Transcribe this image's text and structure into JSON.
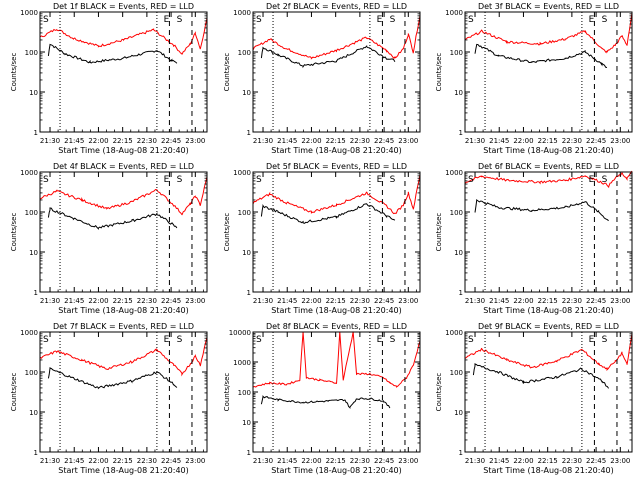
{
  "chart_data": [
    {
      "type": "line",
      "title": "Det 1f BLACK = Events, RED = LLD",
      "xlabel": "Start Time (18-Aug-08 21:20:40)",
      "ylabel": "Counts/sec",
      "x_ticks": [
        "21:30",
        "21:45",
        "22:00",
        "22:15",
        "22:30",
        "22:45",
        "23:00"
      ],
      "y_ticks": [
        "1",
        "10",
        "100",
        "1000"
      ],
      "yscale": "log",
      "ylim": [
        1,
        1000
      ],
      "markers": [
        "E",
        "S"
      ],
      "series": [
        {
          "color": "#000000",
          "points": [
            [
              0.05,
              80
            ],
            [
              0.06,
              160
            ],
            [
              0.15,
              90
            ],
            [
              0.3,
              55
            ],
            [
              0.5,
              70
            ],
            [
              0.7,
              110
            ],
            [
              0.79,
              60
            ],
            [
              0.82,
              55
            ]
          ]
        },
        {
          "color": "#ff0000",
          "points": [
            [
              0,
              230
            ],
            [
              0.1,
              380
            ],
            [
              0.2,
              220
            ],
            [
              0.35,
              140
            ],
            [
              0.5,
              200
            ],
            [
              0.68,
              360
            ],
            [
              0.8,
              150
            ],
            [
              0.85,
              90
            ],
            [
              0.9,
              160
            ],
            [
              0.93,
              300
            ],
            [
              0.96,
              120
            ],
            [
              1,
              700
            ]
          ]
        }
      ]
    },
    {
      "type": "line",
      "title": "Det 2f BLACK = Events, RED = LLD",
      "xlabel": "Start Time (18-Aug-08 21:20:40)",
      "ylabel": "Counts/sec",
      "x_ticks": [
        "21:30",
        "21:45",
        "22:00",
        "22:15",
        "22:30",
        "22:45",
        "23:00"
      ],
      "y_ticks": [
        "1",
        "10",
        "100",
        "1000"
      ],
      "yscale": "log",
      "ylim": [
        1,
        1000
      ],
      "markers": [
        "E",
        "S"
      ],
      "series": [
        {
          "color": "#000000",
          "points": [
            [
              0.05,
              70
            ],
            [
              0.06,
              130
            ],
            [
              0.15,
              85
            ],
            [
              0.3,
              45
            ],
            [
              0.5,
              60
            ],
            [
              0.68,
              140
            ],
            [
              0.8,
              70
            ],
            [
              0.85,
              60
            ]
          ]
        },
        {
          "color": "#ff0000",
          "points": [
            [
              0,
              120
            ],
            [
              0.1,
              210
            ],
            [
              0.2,
              120
            ],
            [
              0.35,
              70
            ],
            [
              0.5,
              110
            ],
            [
              0.68,
              230
            ],
            [
              0.8,
              110
            ],
            [
              0.85,
              70
            ],
            [
              0.9,
              120
            ],
            [
              0.93,
              280
            ],
            [
              0.96,
              100
            ],
            [
              1,
              850
            ]
          ]
        }
      ]
    },
    {
      "type": "line",
      "title": "Det 3f BLACK = Events, RED = LLD",
      "xlabel": "Start Time (18-Aug-08 21:20:40)",
      "ylabel": "Counts/sec",
      "x_ticks": [
        "21:30",
        "21:45",
        "22:00",
        "22:15",
        "22:30",
        "22:45",
        "23:00"
      ],
      "y_ticks": [
        "1",
        "10",
        "100",
        "1000"
      ],
      "yscale": "log",
      "ylim": [
        1,
        1000
      ],
      "markers": [
        "E",
        "S"
      ],
      "series": [
        {
          "color": "#000000",
          "points": [
            [
              0.06,
              90
            ],
            [
              0.07,
              160
            ],
            [
              0.2,
              80
            ],
            [
              0.4,
              55
            ],
            [
              0.6,
              70
            ],
            [
              0.72,
              100
            ],
            [
              0.82,
              50
            ],
            [
              0.85,
              40
            ]
          ]
        },
        {
          "color": "#ff0000",
          "points": [
            [
              0,
              200
            ],
            [
              0.1,
              330
            ],
            [
              0.25,
              180
            ],
            [
              0.45,
              160
            ],
            [
              0.6,
              210
            ],
            [
              0.72,
              330
            ],
            [
              0.82,
              120
            ],
            [
              0.85,
              100
            ],
            [
              0.9,
              150
            ],
            [
              0.94,
              250
            ],
            [
              0.97,
              150
            ],
            [
              1,
              900
            ]
          ]
        }
      ]
    },
    {
      "type": "line",
      "title": "Det 4f BLACK = Events, RED = LLD",
      "xlabel": "Start Time (18-Aug-08 21:20:40)",
      "ylabel": "Counts/sec",
      "x_ticks": [
        "21:30",
        "21:45",
        "22:00",
        "22:15",
        "22:30",
        "22:45",
        "23:00"
      ],
      "y_ticks": [
        "1",
        "10",
        "100",
        "1000"
      ],
      "yscale": "log",
      "ylim": [
        1,
        1000
      ],
      "markers": [
        "E",
        "S"
      ],
      "series": [
        {
          "color": "#000000",
          "points": [
            [
              0.05,
              70
            ],
            [
              0.06,
              120
            ],
            [
              0.2,
              70
            ],
            [
              0.35,
              40
            ],
            [
              0.55,
              60
            ],
            [
              0.7,
              90
            ],
            [
              0.79,
              50
            ],
            [
              0.82,
              40
            ]
          ]
        },
        {
          "color": "#ff0000",
          "points": [
            [
              0,
              220
            ],
            [
              0.1,
              330
            ],
            [
              0.25,
              200
            ],
            [
              0.4,
              120
            ],
            [
              0.55,
              180
            ],
            [
              0.7,
              360
            ],
            [
              0.8,
              150
            ],
            [
              0.85,
              90
            ],
            [
              0.9,
              160
            ],
            [
              0.93,
              250
            ],
            [
              0.96,
              150
            ],
            [
              1,
              750
            ]
          ]
        }
      ]
    },
    {
      "type": "line",
      "title": "Det 5f BLACK = Events, RED = LLD",
      "xlabel": "Start Time (18-Aug-08 21:20:40)",
      "ylabel": "Counts/sec",
      "x_ticks": [
        "21:30",
        "21:45",
        "22:00",
        "22:15",
        "22:30",
        "22:45",
        "23:00"
      ],
      "y_ticks": [
        "1",
        "10",
        "100",
        "1000"
      ],
      "yscale": "log",
      "ylim": [
        1,
        1000
      ],
      "markers": [
        "E",
        "S"
      ],
      "series": [
        {
          "color": "#000000",
          "points": [
            [
              0.05,
              80
            ],
            [
              0.06,
              140
            ],
            [
              0.15,
              100
            ],
            [
              0.3,
              55
            ],
            [
              0.5,
              75
            ],
            [
              0.68,
              160
            ],
            [
              0.8,
              80
            ],
            [
              0.85,
              60
            ]
          ]
        },
        {
          "color": "#ff0000",
          "points": [
            [
              0,
              170
            ],
            [
              0.1,
              280
            ],
            [
              0.2,
              170
            ],
            [
              0.35,
              100
            ],
            [
              0.5,
              150
            ],
            [
              0.68,
              300
            ],
            [
              0.8,
              140
            ],
            [
              0.85,
              90
            ],
            [
              0.9,
              150
            ],
            [
              0.93,
              300
            ],
            [
              0.96,
              120
            ],
            [
              1,
              850
            ]
          ]
        }
      ]
    },
    {
      "type": "line",
      "title": "Det 6f BLACK = Events, RED = LLD",
      "xlabel": "Start Time (18-Aug-08 21:20:40)",
      "ylabel": "Counts/sec",
      "x_ticks": [
        "21:30",
        "21:45",
        "22:00",
        "22:15",
        "22:30",
        "22:45",
        "23:00"
      ],
      "y_ticks": [
        "1",
        "10",
        "100",
        "1000"
      ],
      "yscale": "log",
      "ylim": [
        1,
        1000
      ],
      "markers": [
        "E",
        "S"
      ],
      "series": [
        {
          "color": "#000000",
          "points": [
            [
              0.06,
              100
            ],
            [
              0.07,
              200
            ],
            [
              0.2,
              130
            ],
            [
              0.4,
              110
            ],
            [
              0.6,
              130
            ],
            [
              0.72,
              180
            ],
            [
              0.8,
              100
            ],
            [
              0.86,
              60
            ]
          ]
        },
        {
          "color": "#ff0000",
          "points": [
            [
              0,
              550
            ],
            [
              0.1,
              780
            ],
            [
              0.25,
              620
            ],
            [
              0.45,
              560
            ],
            [
              0.6,
              620
            ],
            [
              0.72,
              800
            ],
            [
              0.82,
              550
            ],
            [
              0.86,
              450
            ],
            [
              0.9,
              700
            ],
            [
              0.94,
              900
            ],
            [
              0.97,
              700
            ],
            [
              1,
              1000
            ]
          ]
        }
      ]
    },
    {
      "type": "line",
      "title": "Det 7f BLACK = Events, RED = LLD",
      "xlabel": "Start Time (18-Aug-08 21:20:40)",
      "ylabel": "Counts/sec",
      "x_ticks": [
        "21:30",
        "21:45",
        "22:00",
        "22:15",
        "22:30",
        "22:45",
        "23:00"
      ],
      "y_ticks": [
        "1",
        "10",
        "100",
        "1000"
      ],
      "yscale": "log",
      "ylim": [
        1,
        1000
      ],
      "markers": [
        "E",
        "S"
      ],
      "series": [
        {
          "color": "#000000",
          "points": [
            [
              0.05,
              70
            ],
            [
              0.06,
              120
            ],
            [
              0.2,
              70
            ],
            [
              0.35,
              40
            ],
            [
              0.55,
              60
            ],
            [
              0.7,
              100
            ],
            [
              0.8,
              50
            ],
            [
              0.82,
              40
            ]
          ]
        },
        {
          "color": "#ff0000",
          "points": [
            [
              0,
              220
            ],
            [
              0.1,
              330
            ],
            [
              0.25,
              200
            ],
            [
              0.4,
              120
            ],
            [
              0.55,
              180
            ],
            [
              0.7,
              360
            ],
            [
              0.8,
              150
            ],
            [
              0.85,
              90
            ],
            [
              0.9,
              160
            ],
            [
              0.93,
              250
            ],
            [
              0.96,
              150
            ],
            [
              1,
              750
            ]
          ]
        }
      ]
    },
    {
      "type": "line",
      "title": "Det 8f BLACK = Events, RED = LLD",
      "xlabel": "Start Time (18-Aug-08 21:20:40)",
      "ylabel": "Counts/sec",
      "x_ticks": [
        "21:30",
        "21:45",
        "22:00",
        "22:15",
        "22:30",
        "22:45",
        "23:00"
      ],
      "y_ticks": [
        "1",
        "10",
        "100",
        "1000",
        "10000"
      ],
      "yscale": "log",
      "ylim": [
        1,
        10000
      ],
      "markers": [
        "E",
        "S"
      ],
      "series": [
        {
          "color": "#000000",
          "points": [
            [
              0.05,
              40
            ],
            [
              0.06,
              70
            ],
            [
              0.15,
              55
            ],
            [
              0.3,
              45
            ],
            [
              0.45,
              50
            ],
            [
              0.55,
              55
            ],
            [
              0.58,
              30
            ],
            [
              0.62,
              60
            ],
            [
              0.7,
              60
            ],
            [
              0.78,
              50
            ],
            [
              0.82,
              30
            ]
          ]
        },
        {
          "color": "#ff0000",
          "points": [
            [
              0,
              150
            ],
            [
              0.1,
              200
            ],
            [
              0.2,
              180
            ],
            [
              0.28,
              250
            ],
            [
              0.3,
              10000
            ],
            [
              0.32,
              300
            ],
            [
              0.4,
              250
            ],
            [
              0.5,
              200
            ],
            [
              0.52,
              10000
            ],
            [
              0.54,
              250
            ],
            [
              0.6,
              10000
            ],
            [
              0.62,
              400
            ],
            [
              0.7,
              400
            ],
            [
              0.78,
              300
            ],
            [
              0.82,
              200
            ],
            [
              0.86,
              150
            ],
            [
              0.92,
              300
            ],
            [
              0.96,
              800
            ],
            [
              1,
              5000
            ]
          ]
        }
      ]
    },
    {
      "type": "line",
      "title": "Det 9f BLACK = Events, RED = LLD",
      "xlabel": "Start Time (18-Aug-08 21:20:40)",
      "ylabel": "Counts/sec",
      "x_ticks": [
        "21:30",
        "21:45",
        "22:00",
        "22:15",
        "22:30",
        "22:45",
        "23:00"
      ],
      "y_ticks": [
        "1",
        "10",
        "100",
        "1000"
      ],
      "yscale": "log",
      "ylim": [
        1,
        1000
      ],
      "markers": [
        "E",
        "S"
      ],
      "series": [
        {
          "color": "#000000",
          "points": [
            [
              0.05,
              80
            ],
            [
              0.06,
              150
            ],
            [
              0.2,
              100
            ],
            [
              0.35,
              55
            ],
            [
              0.55,
              75
            ],
            [
              0.7,
              120
            ],
            [
              0.82,
              60
            ],
            [
              0.86,
              40
            ]
          ]
        },
        {
          "color": "#ff0000",
          "points": [
            [
              0,
              220
            ],
            [
              0.1,
              370
            ],
            [
              0.25,
              200
            ],
            [
              0.4,
              130
            ],
            [
              0.55,
              190
            ],
            [
              0.7,
              360
            ],
            [
              0.8,
              160
            ],
            [
              0.85,
              120
            ],
            [
              0.9,
              180
            ],
            [
              0.94,
              300
            ],
            [
              0.97,
              150
            ],
            [
              1,
              900
            ]
          ]
        }
      ]
    }
  ]
}
